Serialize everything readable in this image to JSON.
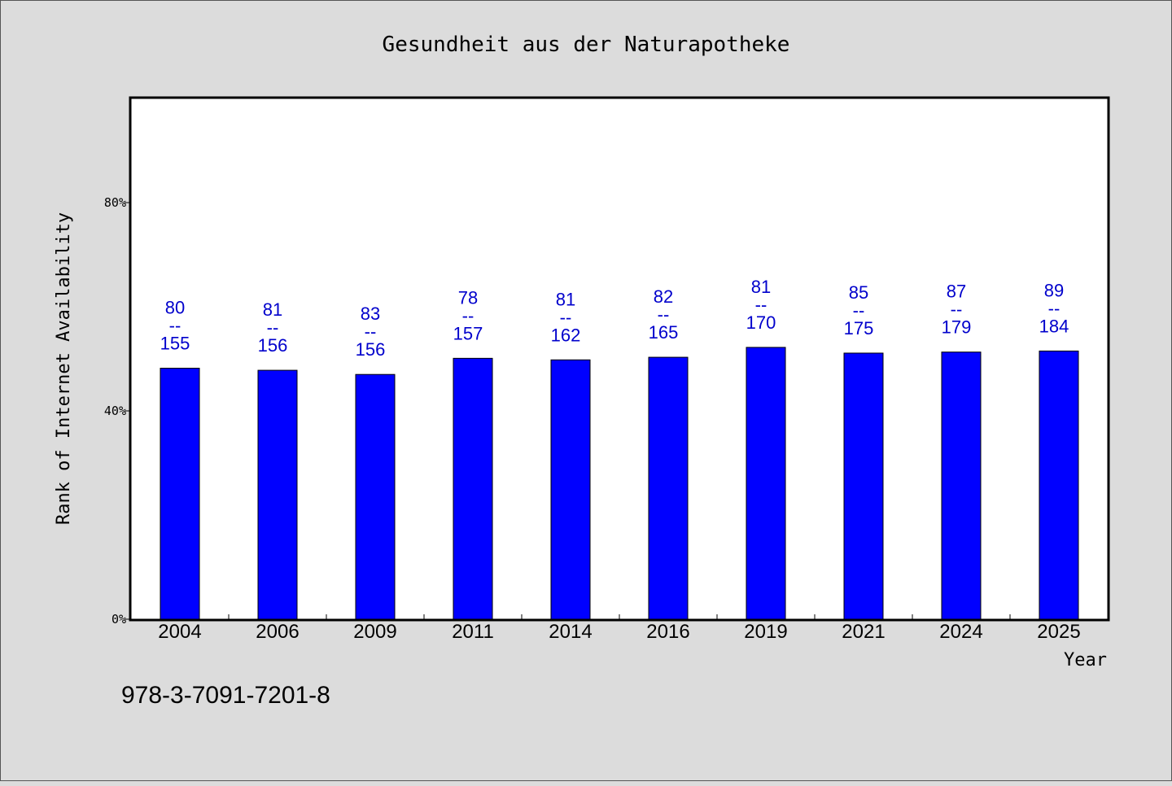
{
  "chart_data": {
    "type": "bar",
    "title": "Gesundheit aus der Naturapotheke",
    "xlabel": "Year",
    "ylabel": "Rank of Internet Availability",
    "categories": [
      "2004",
      "2006",
      "2009",
      "2011",
      "2014",
      "2016",
      "2019",
      "2021",
      "2024",
      "2025"
    ],
    "values": [
      48.2,
      47.8,
      47.0,
      50.1,
      49.8,
      50.3,
      52.2,
      51.1,
      51.3,
      51.5
    ],
    "value_unit": "%",
    "data_labels": [
      {
        "top": "80",
        "sep": "--",
        "bottom": "155"
      },
      {
        "top": "81",
        "sep": "--",
        "bottom": "156"
      },
      {
        "top": "83",
        "sep": "--",
        "bottom": "156"
      },
      {
        "top": "78",
        "sep": "--",
        "bottom": "157"
      },
      {
        "top": "81",
        "sep": "--",
        "bottom": "162"
      },
      {
        "top": "82",
        "sep": "--",
        "bottom": "165"
      },
      {
        "top": "81",
        "sep": "--",
        "bottom": "170"
      },
      {
        "top": "85",
        "sep": "--",
        "bottom": "175"
      },
      {
        "top": "87",
        "sep": "--",
        "bottom": "179"
      },
      {
        "top": "89",
        "sep": "--",
        "bottom": "184"
      }
    ],
    "ylim": [
      0,
      100
    ],
    "yticks": [
      0,
      40,
      80
    ],
    "ytick_labels": [
      "0%",
      "40%",
      "80%"
    ],
    "grid": false,
    "legend": "none",
    "colors": {
      "bar": "#0000ff",
      "label": "#0000cc",
      "background": "#dcdcdc",
      "plot": "#ffffff"
    }
  },
  "footer": {
    "isbn": "978-3-7091-7201-8"
  }
}
